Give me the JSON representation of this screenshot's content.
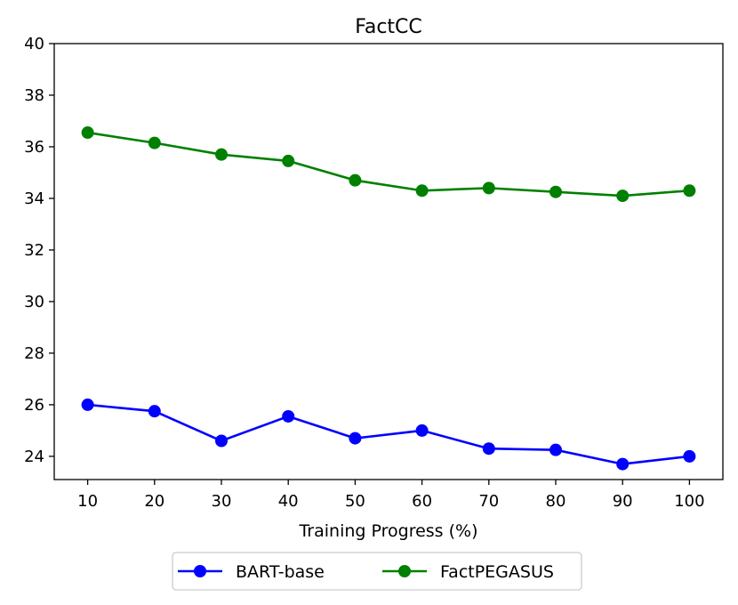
{
  "chart_data": {
    "type": "line",
    "title": "FactCC",
    "xlabel": "Training Progress (%)",
    "ylabel": "",
    "x": [
      10,
      20,
      30,
      40,
      50,
      60,
      70,
      80,
      90,
      100
    ],
    "xticks": [
      "10",
      "20",
      "30",
      "40",
      "50",
      "60",
      "70",
      "80",
      "90",
      "100"
    ],
    "xlim": [
      5,
      105
    ],
    "ylim": [
      23.1,
      40
    ],
    "yticks": [
      "24",
      "26",
      "28",
      "30",
      "32",
      "34",
      "36",
      "38",
      "40"
    ],
    "grid": false,
    "legend_position": "bottom-center, below axis",
    "series": [
      {
        "name": "BART-base",
        "color": "#0000ff",
        "marker": "circle",
        "values": [
          26.0,
          25.75,
          24.6,
          25.55,
          24.7,
          25.0,
          24.3,
          24.25,
          23.7,
          24.0
        ]
      },
      {
        "name": "FactPEGASUS",
        "color": "#008000",
        "marker": "circle",
        "values": [
          36.55,
          36.15,
          35.7,
          35.45,
          34.7,
          34.3,
          34.4,
          34.25,
          34.1,
          34.3
        ]
      }
    ]
  }
}
